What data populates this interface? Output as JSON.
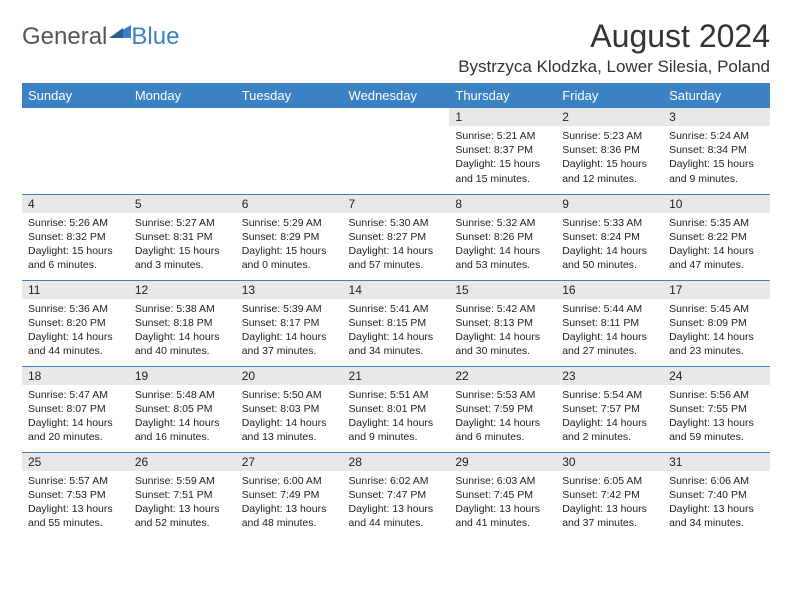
{
  "logo": {
    "text1": "General",
    "text2": "Blue"
  },
  "title": "August 2024",
  "location": "Bystrzyca Klodzka, Lower Silesia, Poland",
  "colors": {
    "header_bg": "#3b82c4",
    "header_text": "#ffffff",
    "daynum_bg": "#e8e8e8",
    "border": "#3b82c4",
    "text": "#222222",
    "logo_gray": "#555555",
    "logo_blue": "#3b82c4"
  },
  "weekdays": [
    "Sunday",
    "Monday",
    "Tuesday",
    "Wednesday",
    "Thursday",
    "Friday",
    "Saturday"
  ],
  "weeks": [
    [
      {
        "n": "",
        "sr": "",
        "ss": "",
        "dl": ""
      },
      {
        "n": "",
        "sr": "",
        "ss": "",
        "dl": ""
      },
      {
        "n": "",
        "sr": "",
        "ss": "",
        "dl": ""
      },
      {
        "n": "",
        "sr": "",
        "ss": "",
        "dl": ""
      },
      {
        "n": "1",
        "sr": "5:21 AM",
        "ss": "8:37 PM",
        "dl": "15 hours and 15 minutes."
      },
      {
        "n": "2",
        "sr": "5:23 AM",
        "ss": "8:36 PM",
        "dl": "15 hours and 12 minutes."
      },
      {
        "n": "3",
        "sr": "5:24 AM",
        "ss": "8:34 PM",
        "dl": "15 hours and 9 minutes."
      }
    ],
    [
      {
        "n": "4",
        "sr": "5:26 AM",
        "ss": "8:32 PM",
        "dl": "15 hours and 6 minutes."
      },
      {
        "n": "5",
        "sr": "5:27 AM",
        "ss": "8:31 PM",
        "dl": "15 hours and 3 minutes."
      },
      {
        "n": "6",
        "sr": "5:29 AM",
        "ss": "8:29 PM",
        "dl": "15 hours and 0 minutes."
      },
      {
        "n": "7",
        "sr": "5:30 AM",
        "ss": "8:27 PM",
        "dl": "14 hours and 57 minutes."
      },
      {
        "n": "8",
        "sr": "5:32 AM",
        "ss": "8:26 PM",
        "dl": "14 hours and 53 minutes."
      },
      {
        "n": "9",
        "sr": "5:33 AM",
        "ss": "8:24 PM",
        "dl": "14 hours and 50 minutes."
      },
      {
        "n": "10",
        "sr": "5:35 AM",
        "ss": "8:22 PM",
        "dl": "14 hours and 47 minutes."
      }
    ],
    [
      {
        "n": "11",
        "sr": "5:36 AM",
        "ss": "8:20 PM",
        "dl": "14 hours and 44 minutes."
      },
      {
        "n": "12",
        "sr": "5:38 AM",
        "ss": "8:18 PM",
        "dl": "14 hours and 40 minutes."
      },
      {
        "n": "13",
        "sr": "5:39 AM",
        "ss": "8:17 PM",
        "dl": "14 hours and 37 minutes."
      },
      {
        "n": "14",
        "sr": "5:41 AM",
        "ss": "8:15 PM",
        "dl": "14 hours and 34 minutes."
      },
      {
        "n": "15",
        "sr": "5:42 AM",
        "ss": "8:13 PM",
        "dl": "14 hours and 30 minutes."
      },
      {
        "n": "16",
        "sr": "5:44 AM",
        "ss": "8:11 PM",
        "dl": "14 hours and 27 minutes."
      },
      {
        "n": "17",
        "sr": "5:45 AM",
        "ss": "8:09 PM",
        "dl": "14 hours and 23 minutes."
      }
    ],
    [
      {
        "n": "18",
        "sr": "5:47 AM",
        "ss": "8:07 PM",
        "dl": "14 hours and 20 minutes."
      },
      {
        "n": "19",
        "sr": "5:48 AM",
        "ss": "8:05 PM",
        "dl": "14 hours and 16 minutes."
      },
      {
        "n": "20",
        "sr": "5:50 AM",
        "ss": "8:03 PM",
        "dl": "14 hours and 13 minutes."
      },
      {
        "n": "21",
        "sr": "5:51 AM",
        "ss": "8:01 PM",
        "dl": "14 hours and 9 minutes."
      },
      {
        "n": "22",
        "sr": "5:53 AM",
        "ss": "7:59 PM",
        "dl": "14 hours and 6 minutes."
      },
      {
        "n": "23",
        "sr": "5:54 AM",
        "ss": "7:57 PM",
        "dl": "14 hours and 2 minutes."
      },
      {
        "n": "24",
        "sr": "5:56 AM",
        "ss": "7:55 PM",
        "dl": "13 hours and 59 minutes."
      }
    ],
    [
      {
        "n": "25",
        "sr": "5:57 AM",
        "ss": "7:53 PM",
        "dl": "13 hours and 55 minutes."
      },
      {
        "n": "26",
        "sr": "5:59 AM",
        "ss": "7:51 PM",
        "dl": "13 hours and 52 minutes."
      },
      {
        "n": "27",
        "sr": "6:00 AM",
        "ss": "7:49 PM",
        "dl": "13 hours and 48 minutes."
      },
      {
        "n": "28",
        "sr": "6:02 AM",
        "ss": "7:47 PM",
        "dl": "13 hours and 44 minutes."
      },
      {
        "n": "29",
        "sr": "6:03 AM",
        "ss": "7:45 PM",
        "dl": "13 hours and 41 minutes."
      },
      {
        "n": "30",
        "sr": "6:05 AM",
        "ss": "7:42 PM",
        "dl": "13 hours and 37 minutes."
      },
      {
        "n": "31",
        "sr": "6:06 AM",
        "ss": "7:40 PM",
        "dl": "13 hours and 34 minutes."
      }
    ]
  ]
}
